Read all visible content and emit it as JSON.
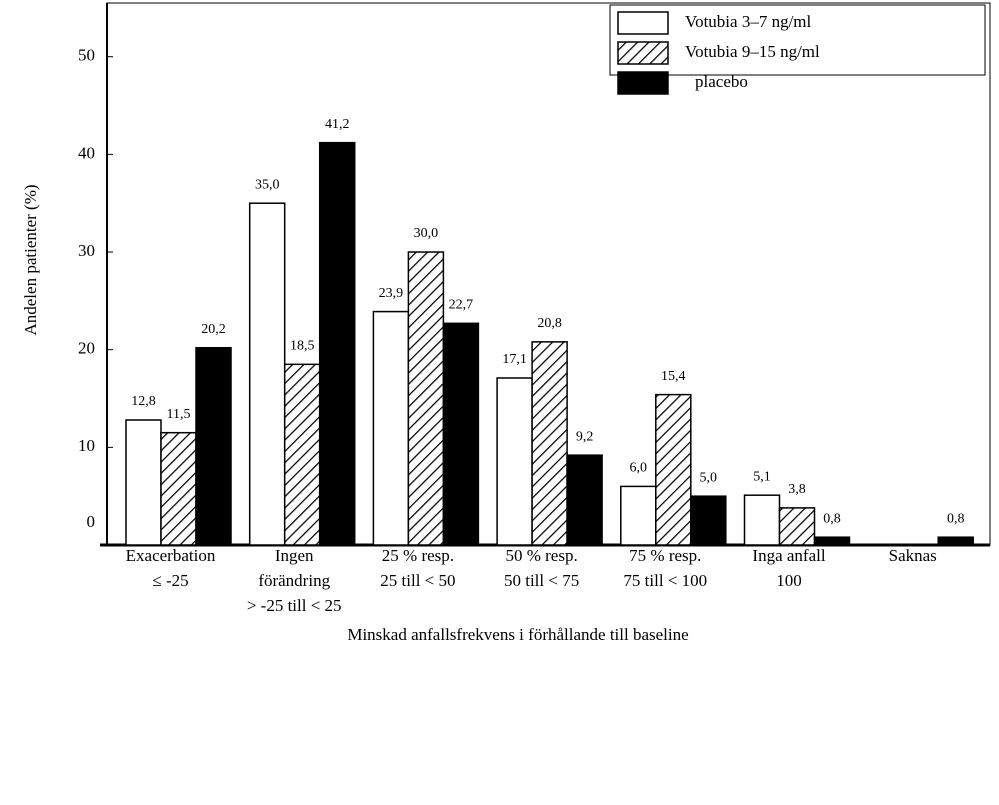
{
  "chart_data": {
    "type": "bar",
    "y_label": "Andelen patienter (%)",
    "x_label": "Minskad anfallsfrekvens i förhållande till baseline",
    "categories": [
      [
        "Exacerbation",
        "≤ -25"
      ],
      [
        "Ingen",
        "förändring",
        "> -25 till < 25"
      ],
      [
        "25 % resp.",
        "25 till < 50"
      ],
      [
        "50 % resp.",
        "50 till < 75"
      ],
      [
        "75 % resp.",
        "75 till < 100"
      ],
      [
        "Inga anfall",
        "100"
      ],
      [
        "Saknas"
      ]
    ],
    "series": [
      {
        "name": "Votubia 3–7 ng/ml",
        "color": "#ffffff",
        "values": [
          12.8,
          35.0,
          23.9,
          17.1,
          6.0,
          5.1,
          null
        ],
        "value_labels": [
          "12,8",
          "35,0",
          "23,9",
          "17,1",
          "6,0",
          "5,1",
          null
        ]
      },
      {
        "name": "Votubia 9–15 ng/ml",
        "color": "#ffffff",
        "hatch": true,
        "values": [
          11.5,
          18.5,
          30.0,
          20.8,
          15.4,
          3.8,
          null
        ],
        "value_labels": [
          "11,5",
          "18,5",
          "30,0",
          "20,8",
          "15,4",
          "3,8",
          null
        ]
      },
      {
        "name": "placebo",
        "color": "#000000",
        "values": [
          20.2,
          41.2,
          22.7,
          9.2,
          5.0,
          0.8,
          0.8
        ],
        "value_labels": [
          "20,2",
          "41,2",
          "22,7",
          "9,2",
          "5,0",
          "0,8",
          "0,8"
        ]
      }
    ],
    "ylim": [
      0,
      55.5
    ],
    "yticks": [
      0,
      10,
      20,
      30,
      40,
      50
    ]
  }
}
